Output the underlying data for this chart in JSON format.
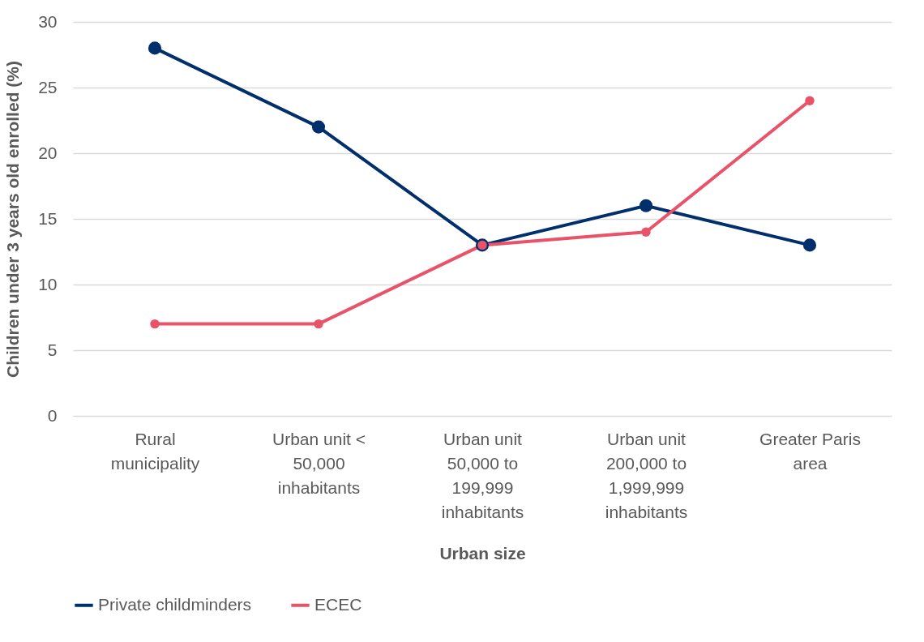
{
  "chart_data": {
    "type": "line",
    "xlabel": "Urban size",
    "ylabel": "Children under 3 years old enrolled (%)",
    "categories": [
      "Rural municipality",
      "Urban unit < 50,000 inhabitants",
      "Urban unit 50,000 to 199,999 inhabitants",
      "Urban unit 200,000 to 1,999,999 inhabitants",
      "Greater Paris area"
    ],
    "series": [
      {
        "name": "Private childminders",
        "color": "#002f6c",
        "values": [
          28,
          22,
          13,
          16,
          13
        ]
      },
      {
        "name": "ECEC",
        "color": "#e8536a",
        "values": [
          7,
          7,
          13,
          14,
          24
        ]
      }
    ],
    "ylim": [
      0,
      30
    ],
    "yticks": [
      0,
      5,
      10,
      15,
      20,
      25,
      30
    ],
    "grid": "y",
    "legend": "bottom",
    "marker": "circle",
    "line_style": "solid"
  }
}
